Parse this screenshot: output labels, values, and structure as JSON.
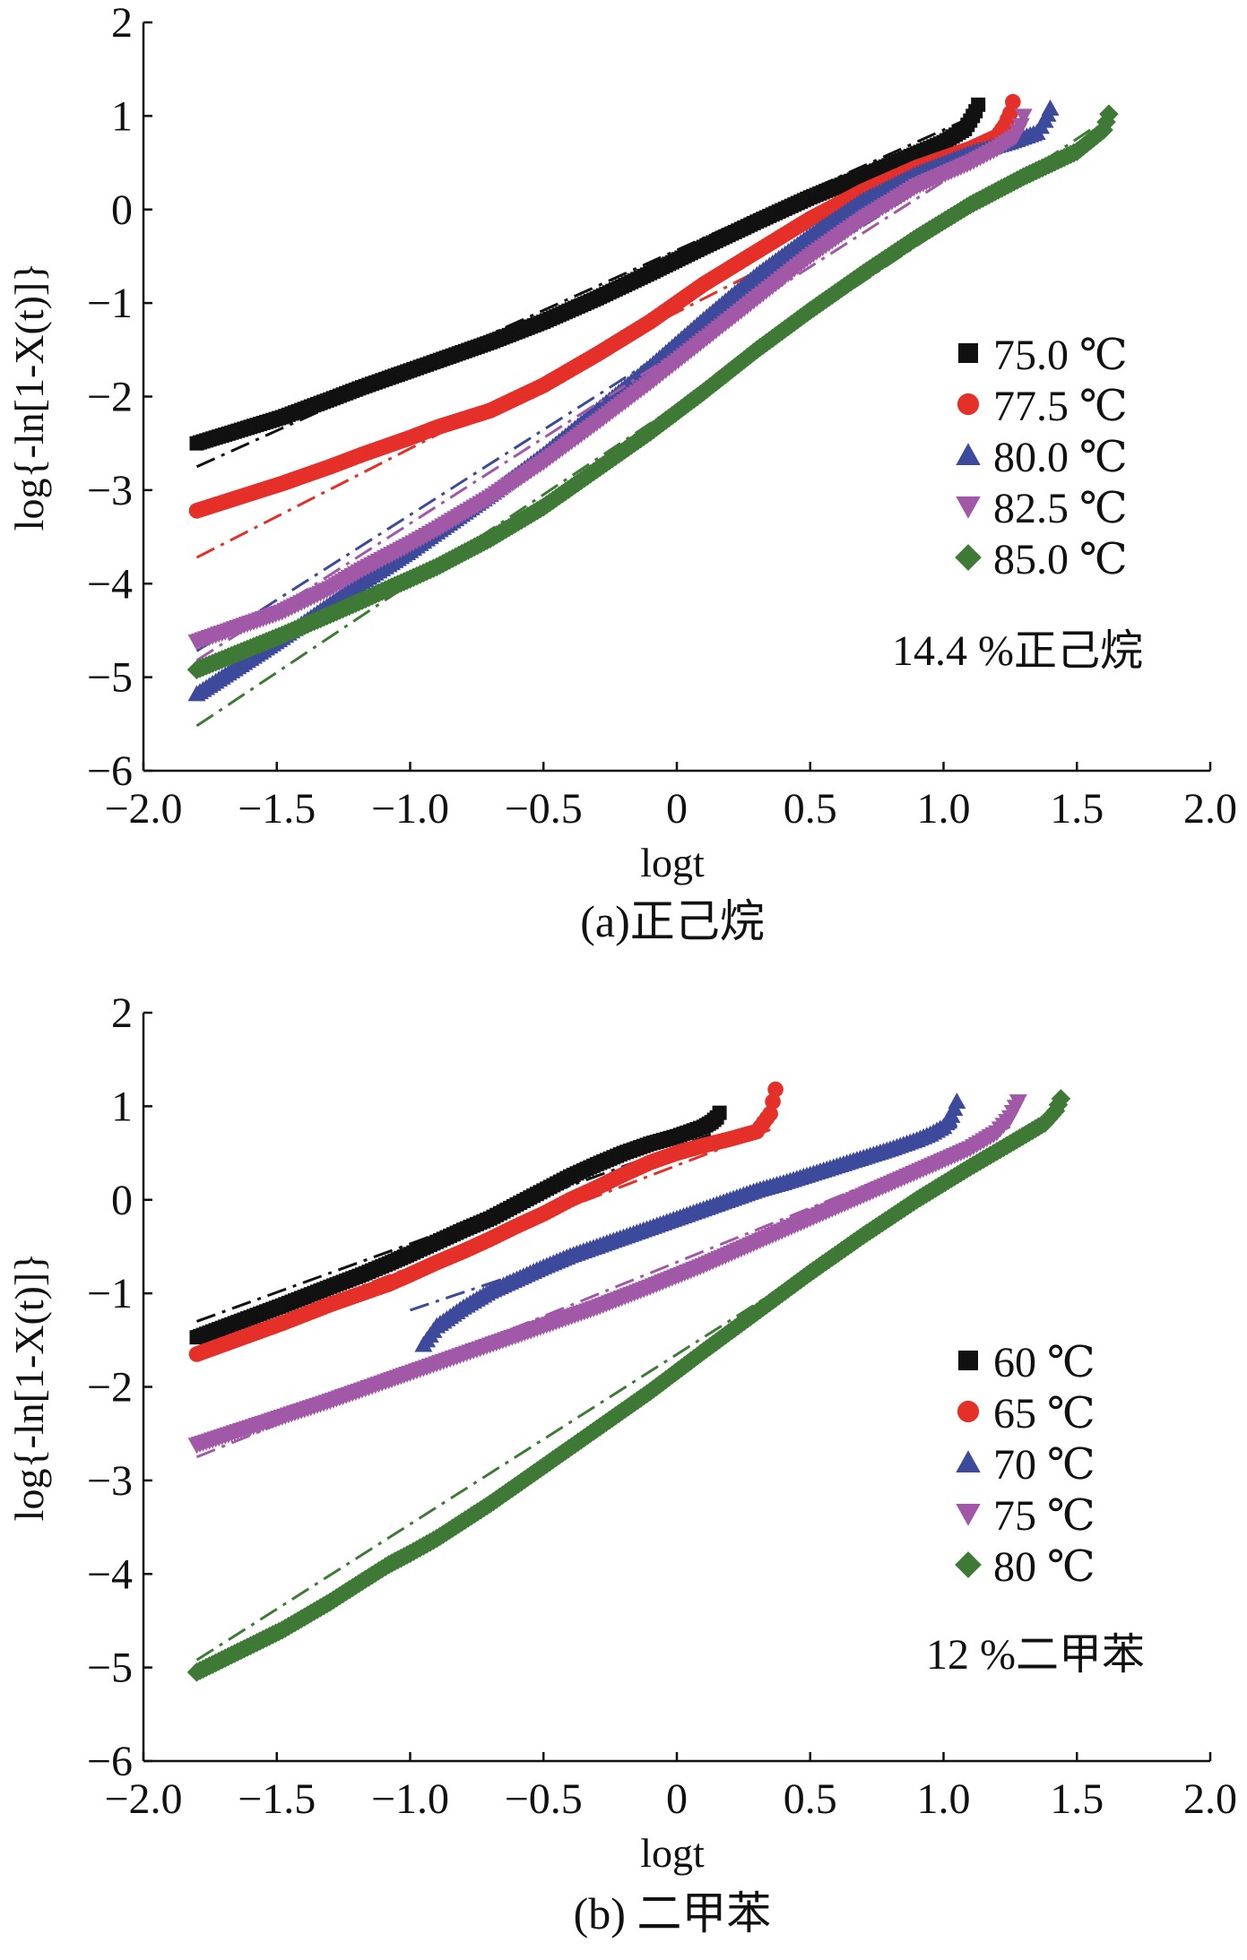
{
  "chart_data": [
    {
      "type": "scatter",
      "title": "",
      "xlabel": "logt",
      "ylabel": "log{-ln[1-X(t)]}",
      "xlim": [
        -2.0,
        2.0
      ],
      "ylim": [
        -6,
        2
      ],
      "xticks": [
        "−2.0",
        "−1.5",
        "−1.0",
        "−0.5",
        "0",
        "0.5",
        "1.0",
        "1.5",
        "2.0"
      ],
      "yticks": [
        "−6",
        "−5",
        "−4",
        "−3",
        "−2",
        "−1",
        "0",
        "1",
        "2"
      ],
      "grid": false,
      "legend_position": "right",
      "annotation": "14.4 %正己烷",
      "caption": "(a)正己烷",
      "series": [
        {
          "name": "75.0 ℃",
          "color": "#111111",
          "marker": "square",
          "x": [
            -1.8,
            -1.48,
            -1.3,
            -1.18,
            -1.08,
            -1.0,
            -0.9,
            -0.7,
            -0.5,
            -0.3,
            -0.1,
            0.1,
            0.3,
            0.5,
            0.7,
            0.9,
            1.0,
            1.08,
            1.1,
            1.12,
            1.13
          ],
          "y": [
            -2.5,
            -2.22,
            -2.03,
            -1.9,
            -1.8,
            -1.72,
            -1.62,
            -1.42,
            -1.2,
            -0.95,
            -0.68,
            -0.4,
            -0.13,
            0.13,
            0.36,
            0.6,
            0.72,
            0.86,
            0.95,
            1.05,
            1.12
          ],
          "fit": {
            "x": [
              -1.8,
              1.1
            ],
            "y": [
              -2.75,
              0.98
            ]
          }
        },
        {
          "name": "77.5 ℃",
          "color": "#e52f29",
          "marker": "circle",
          "x": [
            -1.8,
            -1.48,
            -1.3,
            -1.18,
            -1.08,
            -1.0,
            -0.9,
            -0.7,
            -0.5,
            -0.3,
            -0.1,
            0.1,
            0.3,
            0.5,
            0.7,
            0.9,
            1.1,
            1.2,
            1.23,
            1.25,
            1.26
          ],
          "y": [
            -3.22,
            -2.93,
            -2.75,
            -2.62,
            -2.52,
            -2.44,
            -2.33,
            -2.15,
            -1.88,
            -1.55,
            -1.2,
            -0.8,
            -0.45,
            -0.1,
            0.2,
            0.45,
            0.65,
            0.78,
            0.9,
            1.03,
            1.15
          ],
          "fit": {
            "x": [
              -1.8,
              1.25
            ],
            "y": [
              -3.72,
              0.72
            ]
          }
        },
        {
          "name": "80.0 ℃",
          "color": "#3d4a9c",
          "marker": "triangle-up",
          "x": [
            -1.8,
            -1.48,
            -1.3,
            -1.18,
            -1.08,
            -1.0,
            -0.9,
            -0.7,
            -0.5,
            -0.3,
            -0.1,
            0.1,
            0.3,
            0.5,
            0.7,
            0.9,
            1.1,
            1.25,
            1.35,
            1.38,
            1.4
          ],
          "y": [
            -5.18,
            -4.58,
            -4.22,
            -3.98,
            -3.8,
            -3.65,
            -3.45,
            -3.05,
            -2.62,
            -2.15,
            -1.68,
            -1.18,
            -0.7,
            -0.28,
            0.1,
            0.38,
            0.6,
            0.72,
            0.82,
            0.95,
            1.08
          ],
          "fit": {
            "x": [
              -1.8,
              1.3
            ],
            "y": [
              -4.72,
              0.92
            ]
          }
        },
        {
          "name": "82.5 ℃",
          "color": "#a158a6",
          "marker": "triangle-down",
          "x": [
            -1.8,
            -1.48,
            -1.3,
            -1.18,
            -1.08,
            -1.0,
            -0.9,
            -0.7,
            -0.5,
            -0.3,
            -0.1,
            0.1,
            0.3,
            0.5,
            0.7,
            0.9,
            1.1,
            1.2,
            1.27,
            1.29,
            1.3
          ],
          "y": [
            -4.62,
            -4.3,
            -4.05,
            -3.85,
            -3.7,
            -3.58,
            -3.42,
            -3.08,
            -2.7,
            -2.28,
            -1.85,
            -1.4,
            -0.95,
            -0.5,
            -0.1,
            0.25,
            0.5,
            0.65,
            0.78,
            0.9,
            1.0
          ],
          "fit": {
            "x": [
              -1.8,
              1.3
            ],
            "y": [
              -4.82,
              0.85
            ]
          }
        },
        {
          "name": "85.0 ℃",
          "color": "#3e7a35",
          "marker": "diamond",
          "x": [
            -1.8,
            -1.48,
            -1.3,
            -1.18,
            -1.08,
            -1.0,
            -0.9,
            -0.7,
            -0.5,
            -0.3,
            -0.1,
            0.1,
            0.3,
            0.5,
            0.7,
            0.9,
            1.1,
            1.3,
            1.5,
            1.6,
            1.62
          ],
          "y": [
            -4.92,
            -4.55,
            -4.33,
            -4.18,
            -4.05,
            -3.95,
            -3.82,
            -3.52,
            -3.18,
            -2.78,
            -2.38,
            -1.95,
            -1.5,
            -1.08,
            -0.68,
            -0.3,
            0.05,
            0.35,
            0.62,
            0.85,
            1.02
          ],
          "fit": {
            "x": [
              -1.8,
              1.55
            ],
            "y": [
              -5.52,
              0.85
            ]
          }
        }
      ]
    },
    {
      "type": "scatter",
      "title": "",
      "xlabel": "logt",
      "ylabel": "log{-ln[1-X(t)]}",
      "xlim": [
        -2.0,
        2.0
      ],
      "ylim": [
        -6,
        2
      ],
      "xticks": [
        "−2.0",
        "−1.5",
        "−1.0",
        "−0.5",
        "0",
        "0.5",
        "1.0",
        "1.5",
        "2.0"
      ],
      "yticks": [
        "−6",
        "−5",
        "−4",
        "−3",
        "−2",
        "−1",
        "0",
        "1",
        "2"
      ],
      "grid": false,
      "legend_position": "right",
      "annotation": "12 %二甲苯",
      "caption": "(b) 二甲苯",
      "series": [
        {
          "name": "60 ℃",
          "color": "#111111",
          "marker": "square",
          "x": [
            -1.8,
            -1.48,
            -1.3,
            -1.18,
            -1.08,
            -1.0,
            -0.9,
            -0.8,
            -0.7,
            -0.6,
            -0.5,
            -0.4,
            -0.3,
            -0.2,
            -0.1,
            0.0,
            0.05,
            0.1,
            0.13,
            0.15,
            0.16
          ],
          "y": [
            -1.47,
            -1.13,
            -0.93,
            -0.8,
            -0.68,
            -0.58,
            -0.45,
            -0.32,
            -0.2,
            -0.05,
            0.1,
            0.25,
            0.38,
            0.5,
            0.6,
            0.68,
            0.73,
            0.78,
            0.83,
            0.88,
            0.93
          ],
          "fit": {
            "x": [
              -1.8,
              0.15
            ],
            "y": [
              -1.3,
              0.72
            ]
          }
        },
        {
          "name": "65 ℃",
          "color": "#e52f29",
          "marker": "circle",
          "x": [
            -1.8,
            -1.48,
            -1.3,
            -1.18,
            -1.08,
            -1.0,
            -0.9,
            -0.8,
            -0.7,
            -0.6,
            -0.5,
            -0.4,
            -0.3,
            -0.2,
            -0.1,
            0.0,
            0.1,
            0.2,
            0.3,
            0.35,
            0.37
          ],
          "y": [
            -1.65,
            -1.32,
            -1.12,
            -1.0,
            -0.9,
            -0.8,
            -0.67,
            -0.55,
            -0.42,
            -0.28,
            -0.15,
            0.0,
            0.13,
            0.27,
            0.4,
            0.5,
            0.58,
            0.65,
            0.73,
            0.92,
            1.18
          ],
          "fit": {
            "x": [
              -1.8,
              0.35
            ],
            "y": [
              -1.6,
              0.75
            ]
          }
        },
        {
          "name": "70 ℃",
          "color": "#3d4a9c",
          "marker": "triangle-up",
          "x": [
            -0.95,
            -0.9,
            -0.85,
            -0.8,
            -0.7,
            -0.6,
            -0.5,
            -0.4,
            -0.3,
            -0.2,
            -0.1,
            0.0,
            0.1,
            0.2,
            0.3,
            0.4,
            0.5,
            0.6,
            0.7,
            0.8,
            0.9,
            0.95,
            1.0,
            1.03,
            1.05
          ],
          "y": [
            -1.55,
            -1.35,
            -1.25,
            -1.15,
            -0.98,
            -0.85,
            -0.72,
            -0.6,
            -0.5,
            -0.4,
            -0.3,
            -0.2,
            -0.1,
            0.0,
            0.1,
            0.18,
            0.27,
            0.36,
            0.45,
            0.54,
            0.64,
            0.7,
            0.78,
            0.9,
            1.05
          ],
          "fit": {
            "x": [
              -1.0,
              1.05
            ],
            "y": [
              -1.18,
              0.78
            ]
          }
        },
        {
          "name": "75 ℃",
          "color": "#a158a6",
          "marker": "triangle-down",
          "x": [
            -1.8,
            -1.48,
            -1.3,
            -1.18,
            -1.08,
            -1.0,
            -0.9,
            -0.8,
            -0.7,
            -0.5,
            -0.3,
            -0.1,
            0.1,
            0.3,
            0.5,
            0.7,
            0.9,
            1.1,
            1.2,
            1.25,
            1.28
          ],
          "y": [
            -2.62,
            -2.32,
            -2.15,
            -2.03,
            -1.93,
            -1.85,
            -1.75,
            -1.65,
            -1.55,
            -1.35,
            -1.15,
            -0.93,
            -0.7,
            -0.45,
            -0.2,
            0.05,
            0.3,
            0.55,
            0.72,
            0.88,
            1.05
          ],
          "fit": {
            "x": [
              -1.8,
              1.25
            ],
            "y": [
              -2.75,
              0.78
            ]
          }
        },
        {
          "name": "80 ℃",
          "color": "#3e7a35",
          "marker": "diamond",
          "x": [
            -1.8,
            -1.48,
            -1.3,
            -1.18,
            -1.08,
            -1.0,
            -0.9,
            -0.7,
            -0.5,
            -0.3,
            -0.1,
            0.1,
            0.3,
            0.5,
            0.7,
            0.9,
            1.1,
            1.25,
            1.38,
            1.42,
            1.44
          ],
          "y": [
            -5.05,
            -4.6,
            -4.3,
            -4.08,
            -3.9,
            -3.78,
            -3.62,
            -3.25,
            -2.85,
            -2.45,
            -2.05,
            -1.62,
            -1.2,
            -0.78,
            -0.38,
            0.0,
            0.35,
            0.6,
            0.82,
            0.95,
            1.08
          ],
          "fit": {
            "x": [
              -1.8,
              1.45
            ],
            "y": [
              -4.92,
              0.98
            ]
          }
        }
      ]
    }
  ]
}
